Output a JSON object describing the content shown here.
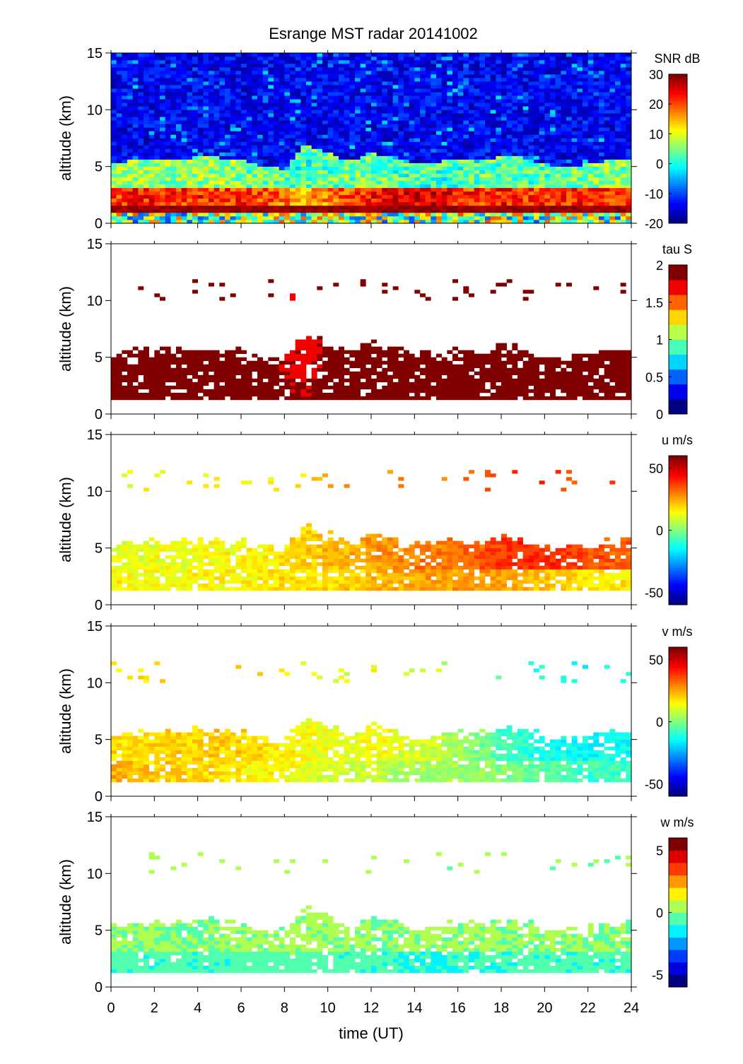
{
  "chart_data": {
    "type": "heatmap",
    "title": "Esrange MST radar 20141002",
    "xlabel": "time (UT)",
    "ylabel": "altitude (km)",
    "xlim": [
      0,
      24
    ],
    "ylim": [
      0,
      15
    ],
    "xticks": [
      0,
      2,
      4,
      6,
      8,
      10,
      12,
      14,
      16,
      18,
      20,
      22,
      24
    ],
    "yticks": [
      0,
      5,
      10,
      15
    ],
    "grid": false,
    "hours": [
      0,
      1,
      2,
      3,
      4,
      5,
      6,
      7,
      8,
      9,
      10,
      11,
      12,
      13,
      14,
      15,
      16,
      17,
      18,
      19,
      20,
      21,
      22,
      23,
      24
    ],
    "data_bottom_km": 1.3,
    "data_top_km": [
      5.2,
      5.6,
      5.6,
      5.7,
      5.8,
      5.8,
      5.6,
      5.0,
      4.8,
      7.0,
      6.2,
      5.4,
      6.2,
      5.8,
      5.2,
      5.4,
      5.6,
      5.4,
      6.0,
      5.8,
      5.2,
      5.0,
      5.2,
      5.6,
      5.8
    ],
    "panels": [
      {
        "name": "SNR",
        "colorbar_label": "SNR dB",
        "clim": [
          -20,
          30
        ],
        "cbar_ticks": [
          30,
          20,
          10,
          0,
          -10,
          -20
        ],
        "levels": 64,
        "fill_all": true,
        "low_layer": [
          20,
          22,
          22,
          21,
          22,
          20,
          22,
          20,
          18,
          14,
          18,
          20,
          22,
          24,
          26,
          25,
          22,
          21,
          22,
          22,
          21,
          22,
          22,
          21,
          20
        ],
        "mid_layer": [
          6,
          6,
          7,
          6,
          6,
          7,
          5,
          4,
          2,
          2,
          3,
          4,
          4,
          3,
          2,
          2,
          2,
          3,
          4,
          3,
          3,
          4,
          5,
          5,
          5
        ],
        "upper_layer": -14
      },
      {
        "name": "tau",
        "colorbar_label": "tau S",
        "clim": [
          0,
          2
        ],
        "cbar_ticks": [
          2,
          1.5,
          1,
          0.5,
          0
        ],
        "levels": 10,
        "fill_all": false,
        "low_layer": [
          2,
          2,
          2,
          2,
          2,
          2,
          2,
          2,
          1.9,
          1.8,
          1.9,
          2,
          2,
          2,
          2,
          2,
          2,
          2,
          2,
          2,
          2,
          2,
          2,
          2,
          2
        ],
        "mid_layer": [
          2,
          2,
          2,
          2,
          2,
          2,
          2,
          2,
          1.8,
          1.7,
          1.9,
          2,
          2,
          2,
          2,
          2,
          2,
          1.9,
          2,
          2,
          2,
          2,
          2,
          2,
          2
        ]
      },
      {
        "name": "u",
        "colorbar_label": "u m/s",
        "clim": [
          -60,
          60
        ],
        "cbar_ticks": [
          50,
          0,
          -50
        ],
        "levels": 64,
        "fill_all": false,
        "low_layer": [
          14,
          14,
          14,
          14,
          15,
          15,
          15,
          16,
          18,
          18,
          18,
          20,
          22,
          24,
          25,
          26,
          26,
          27,
          26,
          24,
          22,
          20,
          18,
          16,
          16
        ],
        "mid_layer": [
          12,
          12,
          13,
          13,
          14,
          14,
          15,
          16,
          18,
          20,
          22,
          24,
          26,
          28,
          30,
          30,
          32,
          34,
          38,
          40,
          40,
          38,
          36,
          34,
          34
        ]
      },
      {
        "name": "v",
        "colorbar_label": "v m/s",
        "clim": [
          -60,
          60
        ],
        "cbar_ticks": [
          50,
          0,
          -50
        ],
        "levels": 64,
        "fill_all": false,
        "low_layer": [
          24,
          22,
          20,
          20,
          20,
          18,
          16,
          14,
          14,
          12,
          10,
          8,
          8,
          6,
          5,
          4,
          3,
          2,
          0,
          -2,
          -4,
          -6,
          -8,
          -8,
          -8
        ],
        "mid_layer": [
          18,
          18,
          18,
          20,
          20,
          20,
          20,
          18,
          16,
          14,
          12,
          12,
          14,
          12,
          10,
          8,
          4,
          0,
          -6,
          -10,
          -12,
          -14,
          -14,
          -14,
          -14
        ]
      },
      {
        "name": "w",
        "colorbar_label": "w m/s",
        "clim": [
          -6,
          6
        ],
        "cbar_ticks": [
          5,
          0,
          -5
        ],
        "levels": 12,
        "fill_all": false,
        "low_layer": [
          -0.6,
          -0.6,
          -0.7,
          -0.6,
          -0.7,
          -0.6,
          -0.6,
          -0.5,
          -0.4,
          -0.5,
          -0.6,
          -0.6,
          -0.6,
          -0.8,
          -1.0,
          -1.2,
          -1.0,
          -0.9,
          -0.8,
          -0.7,
          -0.6,
          -0.6,
          -0.6,
          -0.6,
          -0.6
        ],
        "mid_layer": [
          0.2,
          0.2,
          0.2,
          0.1,
          0.1,
          0.2,
          0.2,
          0.2,
          0.3,
          0.4,
          0.3,
          0.2,
          0.2,
          0.1,
          0.2,
          0.2,
          0.2,
          0.2,
          0.2,
          0.2,
          0.2,
          0.2,
          0.2,
          0.2,
          0.2
        ]
      }
    ]
  }
}
